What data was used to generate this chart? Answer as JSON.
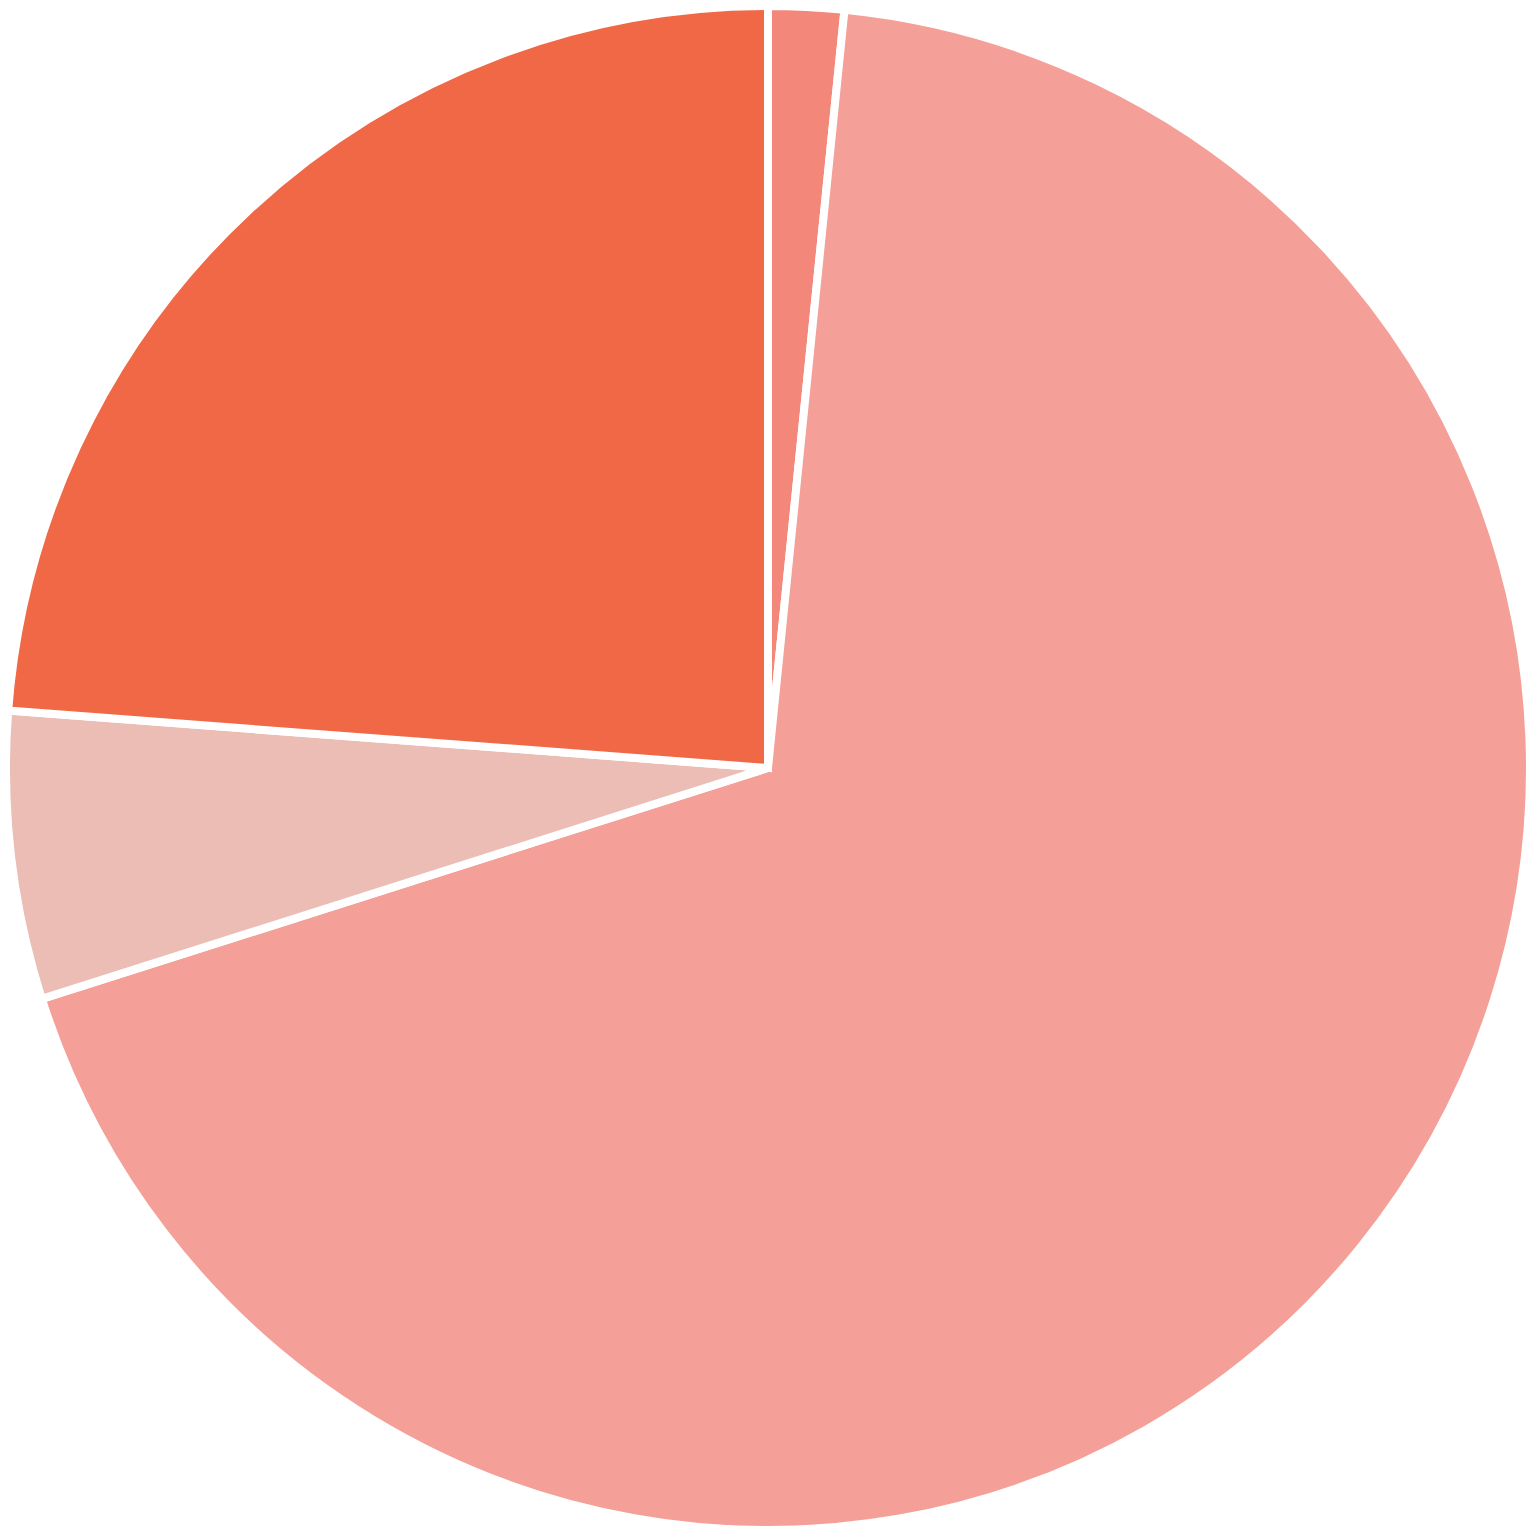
{
  "chart_data": {
    "type": "pie",
    "categories": [
      null,
      null,
      null,
      null
    ],
    "values": [
      1.6,
      68.5,
      6.1,
      23.8
    ],
    "colors": [
      "#f2877a",
      "#f4a098",
      "#ebbdb5",
      "#f06845"
    ]
  }
}
